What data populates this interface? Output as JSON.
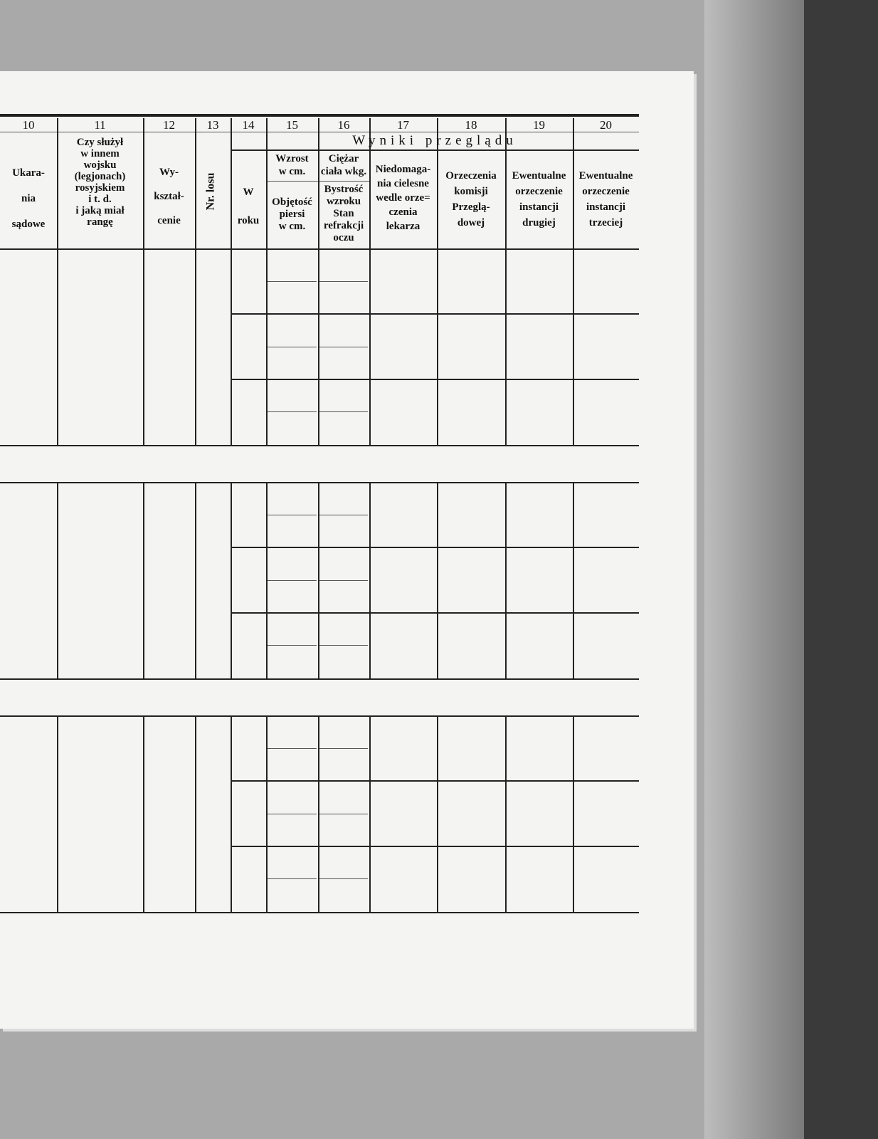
{
  "columns": [
    {
      "num": "10",
      "lines": [
        "Ukara-",
        "nia",
        "sądowe"
      ]
    },
    {
      "num": "11",
      "lines": [
        "Czy służył",
        "w innem",
        "wojsku",
        "(legjonach)",
        "rosyjskiem",
        "i t. d.",
        "i jaką miał",
        "rangę"
      ]
    },
    {
      "num": "12",
      "lines": [
        "Wy-",
        "kształ-",
        "cenie"
      ]
    },
    {
      "num": "13",
      "lines": [
        "Nr. losu"
      ]
    },
    {
      "num": "14",
      "lines": [
        "W",
        "roku"
      ]
    },
    {
      "num": "15",
      "top": [
        "Wzrost",
        "w cm."
      ],
      "bottom": [
        "Objętość",
        "piersi",
        "w cm."
      ]
    },
    {
      "num": "16",
      "top": [
        "Ciężar",
        "ciała wkg."
      ],
      "bottom": [
        "Bystrość",
        "wzroku",
        "Stan",
        "refrakcji",
        "oczu"
      ]
    },
    {
      "num": "17",
      "lines": [
        "Niedomaga-",
        "nia cielesne",
        "wedle orze=",
        "czenia",
        "lekarza"
      ]
    },
    {
      "num": "18",
      "lines": [
        "Orzeczenia",
        "komisji",
        "Przeglą-",
        "dowej"
      ]
    },
    {
      "num": "19",
      "lines": [
        "Ewentualne",
        "orzeczenie",
        "instancji",
        "drugiej"
      ]
    },
    {
      "num": "20",
      "lines": [
        "Ewentualne",
        "orzeczenie",
        "instancji",
        "trzeciej"
      ]
    }
  ],
  "group_header": "Wyniki przeglądu",
  "rows": [
    {},
    {},
    {}
  ]
}
